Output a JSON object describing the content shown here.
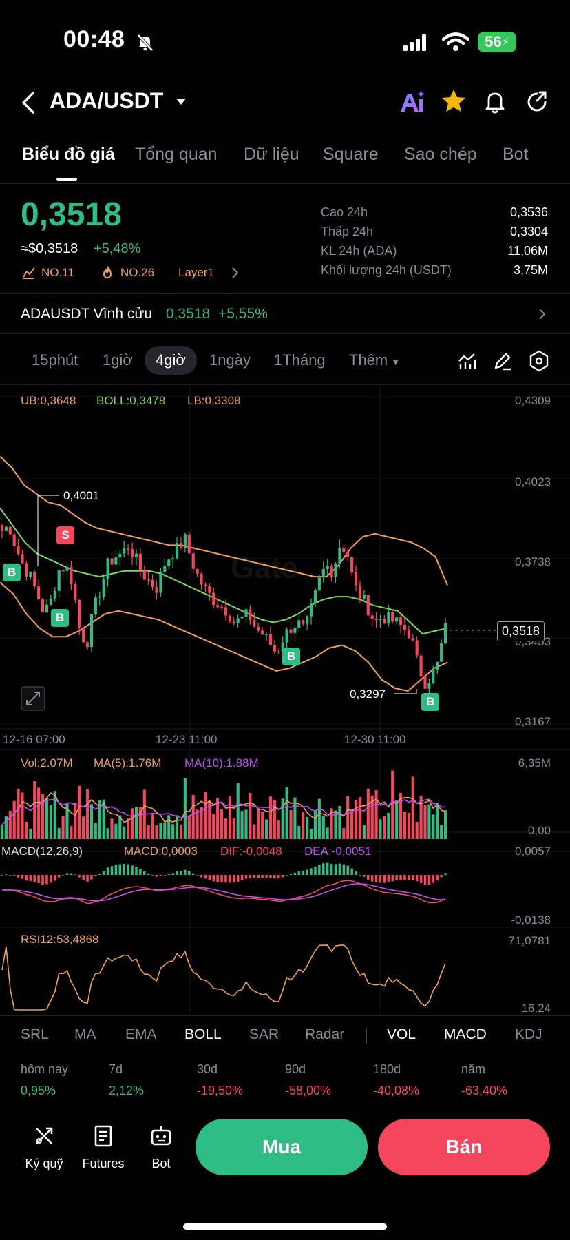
{
  "status_bar": {
    "time": "00:48",
    "battery": "56"
  },
  "header": {
    "pair": "ADA/USDT"
  },
  "tabs": [
    {
      "label": "Biểu đồ giá"
    },
    {
      "label": "Tổng quan"
    },
    {
      "label": "Dữ liệu"
    },
    {
      "label": "Square"
    },
    {
      "label": "Sao chép"
    },
    {
      "label": "Bot"
    }
  ],
  "price": {
    "last": "0,3518",
    "usd": "≈$0,3518",
    "change": "+5,48%",
    "tags": [
      "NO.11",
      "NO.26",
      "Layer1"
    ]
  },
  "stats": [
    {
      "label": "Cao 24h",
      "value": "0,3536"
    },
    {
      "label": "Thấp 24h",
      "value": "0,3304"
    },
    {
      "label": "KL 24h (ADA)",
      "value": "11,06M"
    },
    {
      "label": "Khối lượng 24h (USDT)",
      "value": "3,75M"
    }
  ],
  "perpetual": {
    "name": "ADAUSDT Vĩnh cửu",
    "price": "0,3518",
    "change": "+5,55%"
  },
  "timeframes": [
    "15phút",
    "1giờ",
    "4giờ",
    "1ngày",
    "1Tháng",
    "Thêm"
  ],
  "indicators": {
    "ub": "UB:0,3648",
    "boll": "BOLL:0,3478",
    "lb": "LB:0,3308",
    "vol": "Vol:2.07M",
    "ma5": "MA(5):1.76M",
    "ma10": "MA(10):1.88M",
    "macd_title": "MACD(12,26,9)",
    "macd": "MACD:0,0003",
    "dif": "DIF:-0,0048",
    "dea": "DEA:-0,0051",
    "rsi": "RSI12:53,4868"
  },
  "price_axis": [
    "0,4309",
    "0,4023",
    "0,3738",
    "0,3453",
    "0,3167"
  ],
  "current_price_marker": "0,3518",
  "annotations": {
    "high": "0,4001",
    "low": "0,3297"
  },
  "watermark": "Gate",
  "dates": [
    "12-16 07:00",
    "12-23 11:00",
    "12-30 11:00"
  ],
  "vol_axis": [
    "6,35M",
    "0,00"
  ],
  "macd_axis": [
    "0,0057",
    "-0,0138"
  ],
  "rsi_axis": [
    "71,0781",
    "16,24"
  ],
  "indicator_tabs": [
    "SRL",
    "MA",
    "EMA",
    "BOLL",
    "SAR",
    "Radar",
    "VOL",
    "MACD",
    "KDJ"
  ],
  "performance": [
    {
      "label": "hôm nay",
      "value": "0,95%"
    },
    {
      "label": "7d",
      "value": "2,12%"
    },
    {
      "label": "30d",
      "value": "-19,50%"
    },
    {
      "label": "90d",
      "value": "-58,00%"
    },
    {
      "label": "180d",
      "value": "-40,08%"
    },
    {
      "label": "năm",
      "value": "-63,40%"
    }
  ],
  "bottom_nav": [
    {
      "label": "Ký quỹ"
    },
    {
      "label": "Futures"
    },
    {
      "label": "Bot"
    }
  ],
  "actions": {
    "buy": "Mua",
    "sell": "Bán"
  },
  "colors": {
    "up": "#2ebd85",
    "down": "#f6465d",
    "ub": "#f0a050",
    "boll": "#7ed957",
    "lb": "#f0a050",
    "ma10": "#c050f0"
  },
  "chart_data": {
    "type": "candlestick",
    "x_ticks": [
      "12-16 07:00",
      "12-23 11:00",
      "12-30 11:00"
    ],
    "ylim": [
      0.3167,
      0.4309
    ],
    "annotations": [
      {
        "label": "0,4001",
        "value": 0.4001
      },
      {
        "label": "0,3297",
        "value": 0.3297
      }
    ],
    "close_path": [
      0.384,
      0.386,
      0.378,
      0.372,
      0.368,
      0.362,
      0.355,
      0.36,
      0.37,
      0.372,
      0.366,
      0.35,
      0.344,
      0.356,
      0.364,
      0.372,
      0.375,
      0.376,
      0.379,
      0.374,
      0.369,
      0.366,
      0.364,
      0.372,
      0.376,
      0.378,
      0.381,
      0.373,
      0.367,
      0.363,
      0.36,
      0.358,
      0.356,
      0.352,
      0.353,
      0.355,
      0.35,
      0.348,
      0.345,
      0.341,
      0.347,
      0.35,
      0.352,
      0.349,
      0.357,
      0.366,
      0.372,
      0.37,
      0.379,
      0.377,
      0.365,
      0.361,
      0.357,
      0.352,
      0.354,
      0.353,
      0.352,
      0.35,
      0.348,
      0.338,
      0.331,
      0.333,
      0.338,
      0.3518
    ],
    "boll_upper": [
      0.41,
      0.406,
      0.4,
      0.397,
      0.394,
      0.393,
      0.39,
      0.387,
      0.385,
      0.384,
      0.383,
      0.382,
      0.381,
      0.38,
      0.379,
      0.379,
      0.378,
      0.377,
      0.376,
      0.375,
      0.374,
      0.373,
      0.372,
      0.371,
      0.37,
      0.369,
      0.368,
      0.368,
      0.372,
      0.378,
      0.382,
      0.383,
      0.382,
      0.381,
      0.38,
      0.378,
      0.375,
      0.365
    ],
    "boll_mid": [
      0.392,
      0.386,
      0.38,
      0.376,
      0.374,
      0.372,
      0.37,
      0.369,
      0.368,
      0.369,
      0.37,
      0.37,
      0.37,
      0.369,
      0.367,
      0.365,
      0.363,
      0.361,
      0.359,
      0.357,
      0.355,
      0.353,
      0.352,
      0.353,
      0.355,
      0.358,
      0.36,
      0.361,
      0.361,
      0.36,
      0.358,
      0.357,
      0.356,
      0.352,
      0.348
    ],
    "boll_lower": [
      0.366,
      0.362,
      0.355,
      0.35,
      0.347,
      0.347,
      0.349,
      0.352,
      0.355,
      0.356,
      0.355,
      0.354,
      0.353,
      0.351,
      0.349,
      0.347,
      0.345,
      0.343,
      0.341,
      0.339,
      0.337,
      0.335,
      0.336,
      0.338,
      0.34,
      0.343,
      0.344,
      0.342,
      0.338,
      0.332,
      0.329,
      0.328,
      0.332
    ]
  }
}
